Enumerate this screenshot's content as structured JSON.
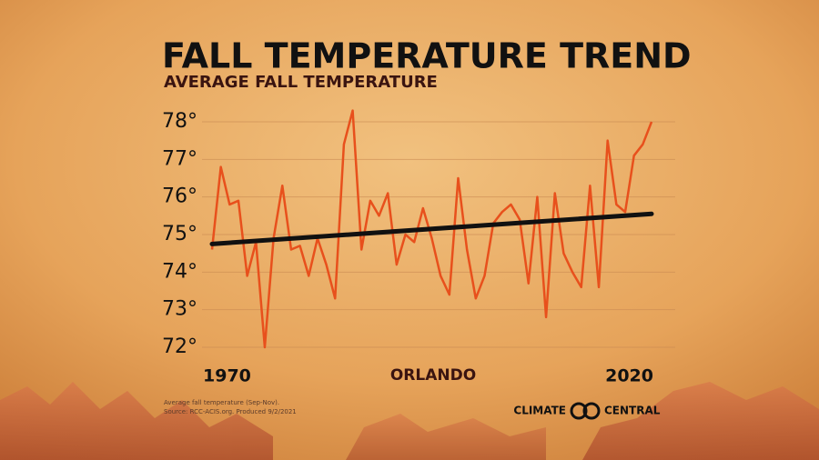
{
  "chart_data": {
    "type": "line",
    "title": "FALL TEMPERATURE TREND",
    "subtitle": "AVERAGE FALL TEMPERATURE",
    "x_label": "ORLANDO",
    "notes": [
      "Average fall temperature (Sep-Nov).",
      "Source: RCC-ACIS.org. Produced 9/2/2021"
    ],
    "brand": [
      "CLIMATE",
      "CENTRAL"
    ],
    "x": [
      1970,
      1971,
      1972,
      1973,
      1974,
      1975,
      1976,
      1977,
      1978,
      1979,
      1980,
      1981,
      1982,
      1983,
      1984,
      1985,
      1986,
      1987,
      1988,
      1989,
      1990,
      1991,
      1992,
      1993,
      1994,
      1995,
      1996,
      1997,
      1998,
      1999,
      2000,
      2001,
      2002,
      2003,
      2004,
      2005,
      2006,
      2007,
      2008,
      2009,
      2010,
      2011,
      2012,
      2013,
      2014,
      2015,
      2016,
      2017,
      2018,
      2019,
      2020
    ],
    "series": [
      {
        "color": "#e8501c",
        "values": [
          74.6,
          76.8,
          75.8,
          75.9,
          73.9,
          74.8,
          72.0,
          74.9,
          76.3,
          74.6,
          74.7,
          73.9,
          74.9,
          74.2,
          73.3,
          77.4,
          78.3,
          74.6,
          75.9,
          75.5,
          76.1,
          74.2,
          75.0,
          74.8,
          75.7,
          74.9,
          73.9,
          73.4,
          76.5,
          74.6,
          73.3,
          73.9,
          75.3,
          75.6,
          75.8,
          75.4,
          73.7,
          76.0,
          72.8,
          76.1,
          74.5,
          74.0,
          73.6,
          76.3,
          73.6,
          77.5,
          75.8,
          75.6,
          77.1,
          77.4,
          78.0
        ]
      }
    ],
    "trend": {
      "color": "#111111",
      "x": [
        1970,
        2020
      ],
      "values": [
        74.75,
        75.55
      ]
    },
    "xlim": [
      1970,
      2020
    ],
    "xticks": [
      1970,
      2020
    ],
    "ylim": [
      72,
      78
    ],
    "yticks": [
      {
        "value": 72,
        "label": "72°"
      },
      {
        "value": 73,
        "label": "73°"
      },
      {
        "value": 74,
        "label": "74°"
      },
      {
        "value": 75,
        "label": "75°"
      },
      {
        "value": 76,
        "label": "76°"
      },
      {
        "value": 77,
        "label": "77°"
      },
      {
        "value": 78,
        "label": "78°"
      }
    ],
    "grid": true
  }
}
